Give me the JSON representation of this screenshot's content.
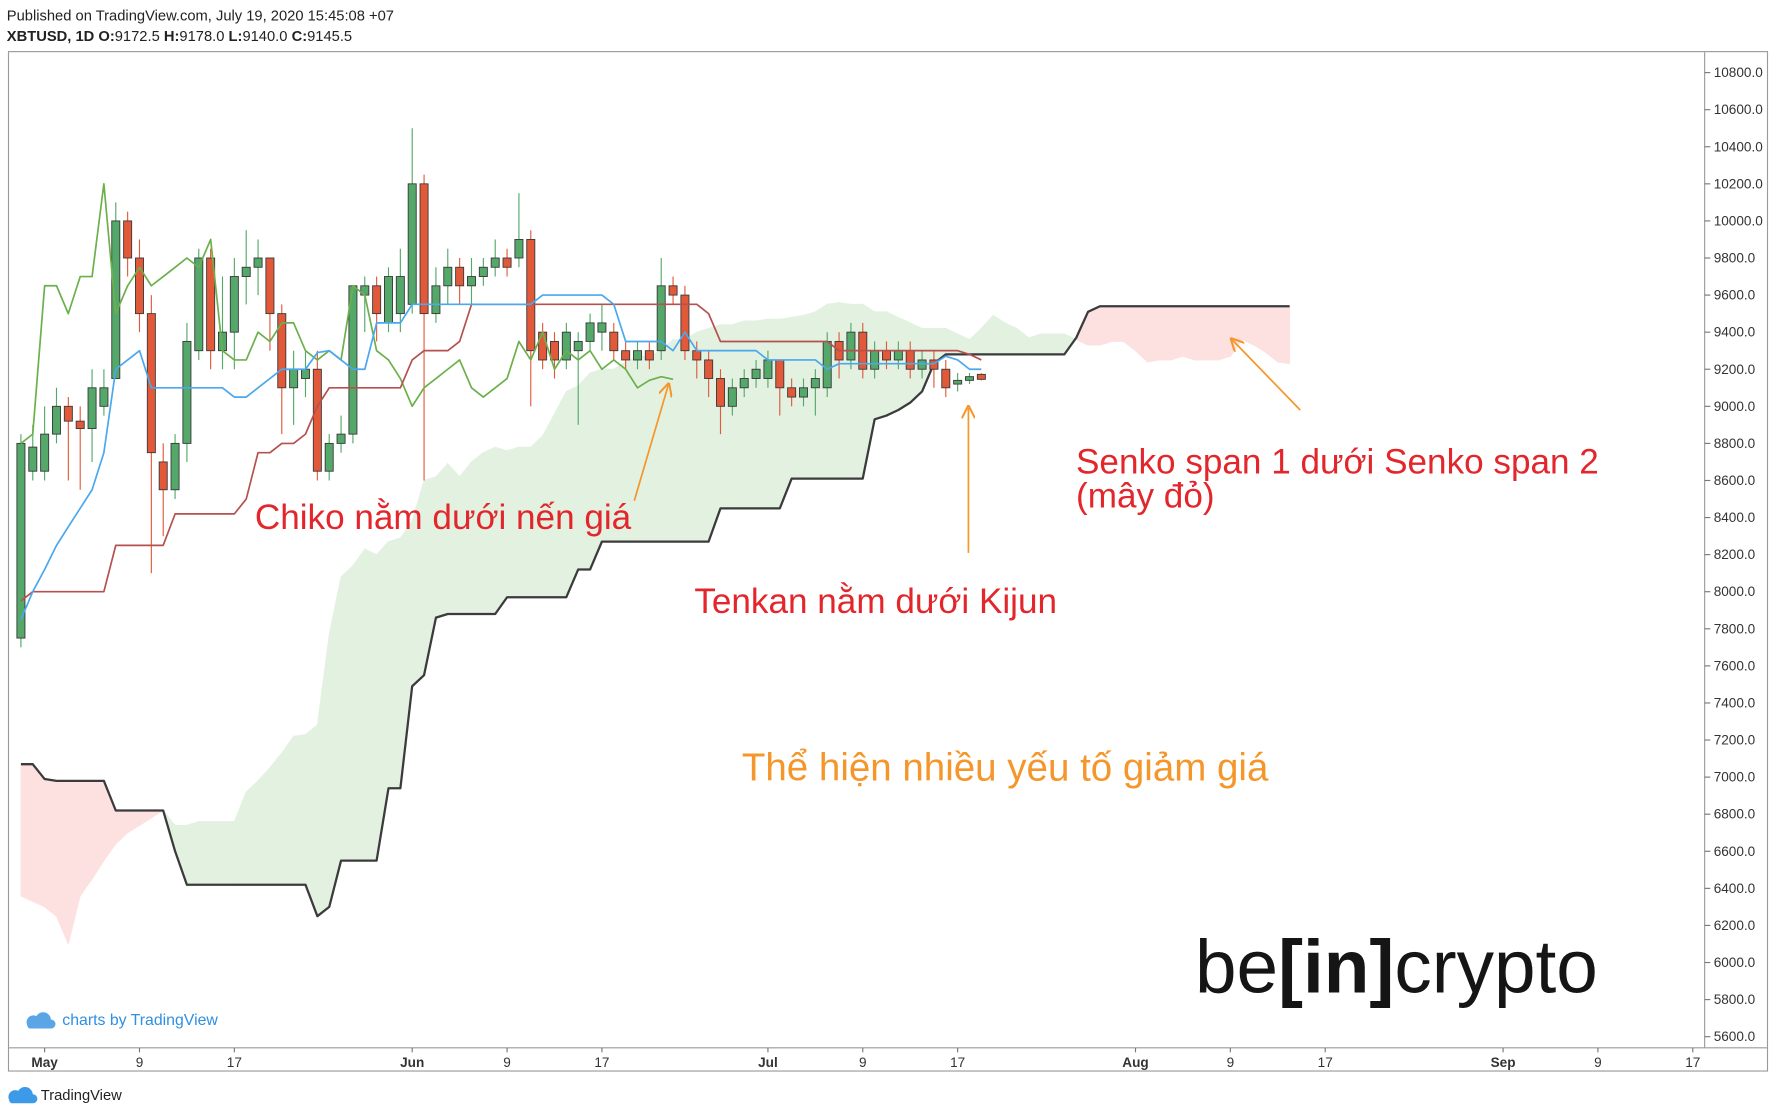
{
  "header": {
    "published": "Published on TradingView.com, July 19, 2020 15:45:08 +07",
    "symbol": "XBTUSD, 1D",
    "ohlc": [
      {
        "key": "O:",
        "value": "9172.5"
      },
      {
        "key": "H:",
        "value": "9178.0"
      },
      {
        "key": "L:",
        "value": "9140.0"
      },
      {
        "key": "C:",
        "value": "9145.5"
      }
    ]
  },
  "chart_data": {
    "type": "candlestick",
    "x": [
      "Apr 29",
      "Apr 30",
      "May 1",
      "May 2",
      "May 3",
      "May 4",
      "May 5",
      "May 6",
      "May 7",
      "May 8",
      "May 9",
      "May 10",
      "May 11",
      "May 12",
      "May 13",
      "May 14",
      "May 15",
      "May 16",
      "May 17",
      "May 18",
      "May 19",
      "May 20",
      "May 21",
      "May 22",
      "May 23",
      "May 24",
      "May 25",
      "May 26",
      "May 27",
      "May 28",
      "May 29",
      "May 30",
      "May 31",
      "Jun 1",
      "Jun 2",
      "Jun 3",
      "Jun 4",
      "Jun 5",
      "Jun 6",
      "Jun 7",
      "Jun 8",
      "Jun 9",
      "Jun 10",
      "Jun 11",
      "Jun 12",
      "Jun 13",
      "Jun 14",
      "Jun 15",
      "Jun 16",
      "Jun 17",
      "Jun 18",
      "Jun 19",
      "Jun 20",
      "Jun 21",
      "Jun 22",
      "Jun 23",
      "Jun 24",
      "Jun 25",
      "Jun 26",
      "Jun 27",
      "Jun 28",
      "Jun 29",
      "Jun 30",
      "Jul 1",
      "Jul 2",
      "Jul 3",
      "Jul 4",
      "Jul 5",
      "Jul 6",
      "Jul 7",
      "Jul 8",
      "Jul 9",
      "Jul 10",
      "Jul 11",
      "Jul 12",
      "Jul 13",
      "Jul 14",
      "Jul 15",
      "Jul 16",
      "Jul 17",
      "Jul 18",
      "Jul 19",
      "Jul 20",
      "Jul 21",
      "Jul 22",
      "Jul 23",
      "Jul 24",
      "Jul 25",
      "Jul 26",
      "Jul 27",
      "Jul 28",
      "Jul 29",
      "Jul 30",
      "Jul 31",
      "Aug 1",
      "Aug 2",
      "Aug 3",
      "Aug 4",
      "Aug 5",
      "Aug 6",
      "Aug 7",
      "Aug 8",
      "Aug 9",
      "Aug 10",
      "Aug 11",
      "Aug 12",
      "Aug 13",
      "Aug 14"
    ],
    "open": [
      7750,
      8650,
      8650,
      8850,
      9000,
      8920,
      8880,
      9000,
      9150,
      10000,
      9800,
      9500,
      8700,
      8550,
      8800,
      9300,
      9800,
      9300,
      9400,
      9700,
      9750,
      9800,
      9500,
      9100,
      9150,
      9200,
      8650,
      8800,
      8850,
      9600,
      9650,
      9450,
      9500,
      9550,
      10200,
      9500,
      9650,
      9750,
      9650,
      9700,
      9750,
      9800,
      9800,
      9900,
      9400,
      9350,
      9250,
      9300,
      9350,
      9400,
      9400,
      9300,
      9250,
      9300,
      9300,
      9650,
      9600,
      9300,
      9250,
      9150,
      9000,
      9100,
      9150,
      9150,
      9250,
      9100,
      9050,
      9100,
      9100,
      9350,
      9250,
      9400,
      9200,
      9300,
      9250,
      9300,
      9200,
      9250,
      9200,
      9120,
      9140,
      9172.5,
      null,
      null,
      null,
      null,
      null,
      null,
      null,
      null,
      null,
      null,
      null,
      null,
      null,
      null,
      null,
      null,
      null,
      null,
      null,
      null,
      null,
      null,
      null,
      null,
      null,
      null
    ],
    "high": [
      8850,
      8900,
      9000,
      9100,
      9050,
      9000,
      9200,
      9200,
      10100,
      10050,
      9900,
      9600,
      8800,
      8850,
      9450,
      9850,
      9850,
      9700,
      9800,
      9950,
      9900,
      9800,
      9550,
      9300,
      9300,
      9300,
      8850,
      8950,
      9650,
      9700,
      9700,
      9750,
      9850,
      10500,
      10250,
      9750,
      9850,
      9800,
      9800,
      9800,
      9900,
      9850,
      10150,
      9950,
      9450,
      9400,
      9450,
      9400,
      9500,
      9550,
      9450,
      9350,
      9350,
      9350,
      9800,
      9700,
      9650,
      9350,
      9300,
      9200,
      9150,
      9200,
      9250,
      9300,
      9250,
      9150,
      9150,
      9200,
      9400,
      9400,
      9450,
      9450,
      9350,
      9350,
      9350,
      9350,
      9300,
      9300,
      9250,
      9180,
      9180,
      9178,
      null,
      null,
      null,
      null,
      null,
      null,
      null,
      null,
      null,
      null,
      null,
      null,
      null,
      null,
      null,
      null,
      null,
      null,
      null,
      null,
      null,
      null,
      null,
      null,
      null,
      null
    ],
    "low": [
      7700,
      8600,
      8600,
      8800,
      8600,
      8550,
      8700,
      8950,
      9150,
      9700,
      9400,
      8100,
      8300,
      8500,
      8700,
      9250,
      9200,
      9200,
      9200,
      9550,
      9600,
      9300,
      8850,
      8900,
      9050,
      8600,
      8600,
      8750,
      8800,
      9400,
      9350,
      9400,
      9400,
      9500,
      8600,
      9450,
      9550,
      9550,
      9550,
      9650,
      9700,
      9700,
      9750,
      9000,
      9200,
      9150,
      9200,
      8900,
      9300,
      9300,
      9250,
      9200,
      9200,
      9200,
      9250,
      9550,
      9250,
      9150,
      9050,
      8850,
      8950,
      9050,
      9100,
      9100,
      8950,
      9000,
      9000,
      8950,
      9050,
      9150,
      9200,
      9150,
      9150,
      9200,
      9200,
      9150,
      9150,
      9100,
      9050,
      9080,
      9120,
      9140,
      null,
      null,
      null,
      null,
      null,
      null,
      null,
      null,
      null,
      null,
      null,
      null,
      null,
      null,
      null,
      null,
      null,
      null,
      null,
      null,
      null,
      null,
      null,
      null,
      null,
      null
    ],
    "close": [
      8800,
      8780,
      8850,
      9000,
      8920,
      8880,
      9100,
      9100,
      10000,
      9800,
      9500,
      8750,
      8550,
      8800,
      9350,
      9800,
      9300,
      9400,
      9700,
      9750,
      9800,
      9500,
      9100,
      9200,
      9200,
      8650,
      8800,
      8850,
      9650,
      9650,
      9500,
      9700,
      9700,
      10200,
      9500,
      9650,
      9750,
      9650,
      9700,
      9750,
      9800,
      9750,
      9900,
      9300,
      9250,
      9250,
      9400,
      9350,
      9450,
      9450,
      9300,
      9250,
      9300,
      9250,
      9650,
      9600,
      9300,
      9250,
      9150,
      9000,
      9100,
      9150,
      9200,
      9250,
      9100,
      9050,
      9100,
      9150,
      9350,
      9250,
      9400,
      9200,
      9300,
      9250,
      9300,
      9200,
      9250,
      9200,
      9100,
      9140,
      9160,
      9145.5,
      null,
      null,
      null,
      null,
      null,
      null,
      null,
      null,
      null,
      null,
      null,
      null,
      null,
      null,
      null,
      null,
      null,
      null,
      null,
      null,
      null,
      null,
      null,
      null,
      null,
      null
    ],
    "up_color": "#53a86a",
    "down_color": "#e2593a",
    "wick_color": "#3a3a3a",
    "lines": [
      {
        "color": "#6cb04c",
        "values": [
          8800,
          8850,
          9650,
          9650,
          9500,
          9700,
          9700,
          10200,
          9500,
          9650,
          9750,
          9650,
          9700,
          9750,
          9800,
          9750,
          9900,
          9300,
          9250,
          9250,
          9400,
          9350,
          9450,
          9450,
          9300,
          9250,
          9300,
          9250,
          9650,
          9600,
          9300,
          9250,
          9150,
          9000,
          9100,
          9150,
          9200,
          9250,
          9100,
          9050,
          9100,
          9150,
          9350,
          9250,
          9400,
          9200,
          9300,
          9250,
          9300,
          9200,
          9250,
          9200,
          9100,
          9140,
          9160,
          9145.5,
          null,
          null,
          null,
          null,
          null,
          null,
          null,
          null,
          null,
          null,
          null,
          null,
          null,
          null,
          null,
          null,
          null,
          null,
          null,
          null,
          null,
          null,
          null,
          null,
          null,
          null,
          null,
          null,
          null,
          null,
          null,
          null,
          null,
          null,
          null,
          null,
          null,
          null,
          null,
          null,
          null,
          null,
          null,
          null,
          null,
          null,
          null,
          null,
          null,
          null,
          null,
          null
        ]
      },
      {
        "color": "#b5514f",
        "values": [
          7950,
          8000,
          8000,
          8000,
          8000,
          8000,
          8000,
          8000,
          8250,
          8250,
          8250,
          8250,
          8250,
          8420,
          8420,
          8420,
          8420,
          8420,
          8420,
          8500,
          8750,
          8750,
          8800,
          8800,
          8850,
          9000,
          9100,
          9100,
          9100,
          9100,
          9100,
          9100,
          9100,
          9250,
          9300,
          9300,
          9300,
          9350,
          9550,
          9550,
          9550,
          9550,
          9550,
          9550,
          9550,
          9550,
          9550,
          9550,
          9550,
          9550,
          9550,
          9550,
          9550,
          9550,
          9550,
          9550,
          9550,
          9550,
          9500,
          9350,
          9350,
          9350,
          9350,
          9350,
          9350,
          9350,
          9350,
          9350,
          9350,
          9300,
          9300,
          9300,
          9300,
          9300,
          9300,
          9300,
          9300,
          9300,
          9300,
          9300,
          9280,
          9250,
          null,
          null,
          null,
          null,
          null,
          null,
          null,
          null,
          null,
          null,
          null,
          null,
          null,
          null,
          null,
          null,
          null,
          null,
          null,
          null,
          null,
          null,
          null,
          null,
          null,
          null
        ]
      },
      {
        "color": "#4aa8ee",
        "values": [
          7850,
          8000,
          8120,
          8250,
          8350,
          8450,
          8550,
          8750,
          9200,
          9250,
          9300,
          9100,
          9100,
          9100,
          9100,
          9100,
          9100,
          9100,
          9050,
          9050,
          9100,
          9150,
          9200,
          9200,
          9200,
          9290,
          9300,
          9250,
          9200,
          9200,
          9450,
          9450,
          9450,
          9550,
          9550,
          9550,
          9550,
          9550,
          9550,
          9550,
          9550,
          9550,
          9550,
          9550,
          9600,
          9600,
          9600,
          9600,
          9600,
          9600,
          9550,
          9350,
          9350,
          9350,
          9350,
          9300,
          9400,
          9300,
          9300,
          9300,
          9300,
          9300,
          9300,
          9250,
          9250,
          9250,
          9250,
          9250,
          9200,
          9230,
          9230,
          9230,
          9230,
          9230,
          9230,
          9230,
          9230,
          9230,
          9270,
          9250,
          9200,
          9200,
          null,
          null,
          null,
          null,
          null,
          null,
          null,
          null,
          null,
          null,
          null,
          null,
          null,
          null,
          null,
          null,
          null,
          null,
          null,
          null,
          null,
          null,
          null,
          null,
          null,
          null
        ]
      }
    ],
    "cloud": {
      "line_color": "#3b3b3b",
      "up_fill": "#e3f1e1",
      "down_fill": "#fde0e0",
      "span_a": [
        6360,
        6330,
        6300,
        6250,
        6100,
        6360,
        6450,
        6550,
        6640,
        6700,
        6740,
        6780,
        6820,
        6740,
        6740,
        6760,
        6760,
        6760,
        6760,
        6920,
        6980,
        7050,
        7130,
        7220,
        7230,
        7280,
        7770,
        8080,
        8140,
        8230,
        8200,
        8270,
        8290,
        8380,
        8600,
        8620,
        8690,
        8620,
        8700,
        8750,
        8780,
        8760,
        8780,
        8780,
        8840,
        8960,
        9080,
        9110,
        9180,
        9200,
        9200,
        9240,
        9270,
        9270,
        9300,
        9360,
        9360,
        9400,
        9420,
        9440,
        9440,
        9460,
        9460,
        9470,
        9470,
        9480,
        9490,
        9510,
        9550,
        9560,
        9550,
        9550,
        9510,
        9510,
        9480,
        9450,
        9420,
        9420,
        9420,
        9390,
        9360,
        9420,
        9490,
        9450,
        9420,
        9370,
        9390,
        9390,
        9390,
        9360,
        9330,
        9330,
        9350,
        9350,
        9300,
        9240,
        9250,
        9250,
        9270,
        9250,
        9250,
        9250,
        9270,
        9360,
        9330,
        9290,
        9240,
        9230
      ],
      "span_b": [
        7070,
        7070,
        6990,
        6980,
        6980,
        6980,
        6980,
        6980,
        6820,
        6820,
        6820,
        6820,
        6820,
        6600,
        6420,
        6420,
        6420,
        6420,
        6420,
        6420,
        6420,
        6420,
        6420,
        6420,
        6420,
        6250,
        6300,
        6550,
        6550,
        6550,
        6550,
        6940,
        6940,
        7490,
        7550,
        7860,
        7880,
        7880,
        7880,
        7880,
        7880,
        7970,
        7970,
        7970,
        7970,
        7970,
        7970,
        8120,
        8120,
        8270,
        8270,
        8270,
        8270,
        8270,
        8270,
        8270,
        8270,
        8270,
        8270,
        8450,
        8450,
        8450,
        8450,
        8450,
        8450,
        8610,
        8610,
        8610,
        8610,
        8610,
        8610,
        8610,
        8930,
        8950,
        8980,
        9020,
        9080,
        9230,
        9280,
        9280,
        9280,
        9280,
        9280,
        9280,
        9280,
        9280,
        9280,
        9280,
        9280,
        9370,
        9510,
        9540,
        9540,
        9540,
        9540,
        9540,
        9540,
        9540,
        9540,
        9540,
        9540,
        9540,
        9540,
        9540,
        9540,
        9540,
        9540,
        9540
      ]
    },
    "xlim": [
      "Apr 28",
      "Sep 18"
    ],
    "xticks": [
      {
        "value": "May 1",
        "label": "May"
      },
      {
        "value": "May 9",
        "label": "9"
      },
      {
        "value": "May 17",
        "label": "17"
      },
      {
        "value": "Jun 1",
        "label": "Jun"
      },
      {
        "value": "Jun 9",
        "label": "9"
      },
      {
        "value": "Jun 17",
        "label": "17"
      },
      {
        "value": "Jul 1",
        "label": "Jul"
      },
      {
        "value": "Jul 9",
        "label": "9"
      },
      {
        "value": "Jul 17",
        "label": "17"
      },
      {
        "value": "Aug 1",
        "label": "Aug"
      },
      {
        "value": "Aug 9",
        "label": "9"
      },
      {
        "value": "Aug 17",
        "label": "17"
      },
      {
        "value": "Sep 1",
        "label": "Sep"
      },
      {
        "value": "Sep 9",
        "label": "9"
      },
      {
        "value": "Sep 17",
        "label": "17"
      }
    ],
    "ylim": [
      5540,
      10910
    ],
    "yticks": [
      {
        "value": 5600,
        "label": "5600.0"
      },
      {
        "value": 5800,
        "label": "5800.0"
      },
      {
        "value": 6000,
        "label": "6000.0"
      },
      {
        "value": 6200,
        "label": "6200.0"
      },
      {
        "value": 6400,
        "label": "6400.0"
      },
      {
        "value": 6600,
        "label": "6600.0"
      },
      {
        "value": 6800,
        "label": "6800.0"
      },
      {
        "value": 7000,
        "label": "7000.0"
      },
      {
        "value": 7200,
        "label": "7200.0"
      },
      {
        "value": 7400,
        "label": "7400.0"
      },
      {
        "value": 7600,
        "label": "7600.0"
      },
      {
        "value": 7800,
        "label": "7800.0"
      },
      {
        "value": 8000,
        "label": "8000.0"
      },
      {
        "value": 8200,
        "label": "8200.0"
      },
      {
        "value": 8400,
        "label": "8400.0"
      },
      {
        "value": 8600,
        "label": "8600.0"
      },
      {
        "value": 8800,
        "label": "8800.0"
      },
      {
        "value": 9000,
        "label": "9000.0"
      },
      {
        "value": 9200,
        "label": "9200.0"
      },
      {
        "value": 9400,
        "label": "9400.0"
      },
      {
        "value": 9600,
        "label": "9600.0"
      },
      {
        "value": 9800,
        "label": "9800.0"
      },
      {
        "value": 10000,
        "label": "10000.0"
      },
      {
        "value": 10200,
        "label": "10200.0"
      },
      {
        "value": 10400,
        "label": "10400.0"
      },
      {
        "value": 10600,
        "label": "10600.0"
      },
      {
        "value": 10800,
        "label": "10800.0"
      }
    ],
    "annotations": [
      "Chiko nằm dưới nến giá",
      "Tenkan nằm dưới Kijun",
      "Senko span 1 dưới Senko span 2",
      "(mây đỏ)",
      "Thể hiện nhiều yếu tố giảm giá"
    ]
  },
  "watermark": [
    "be",
    "[in]",
    "crypto"
  ],
  "attribution": "charts by TradingView",
  "footer": "TradingView"
}
